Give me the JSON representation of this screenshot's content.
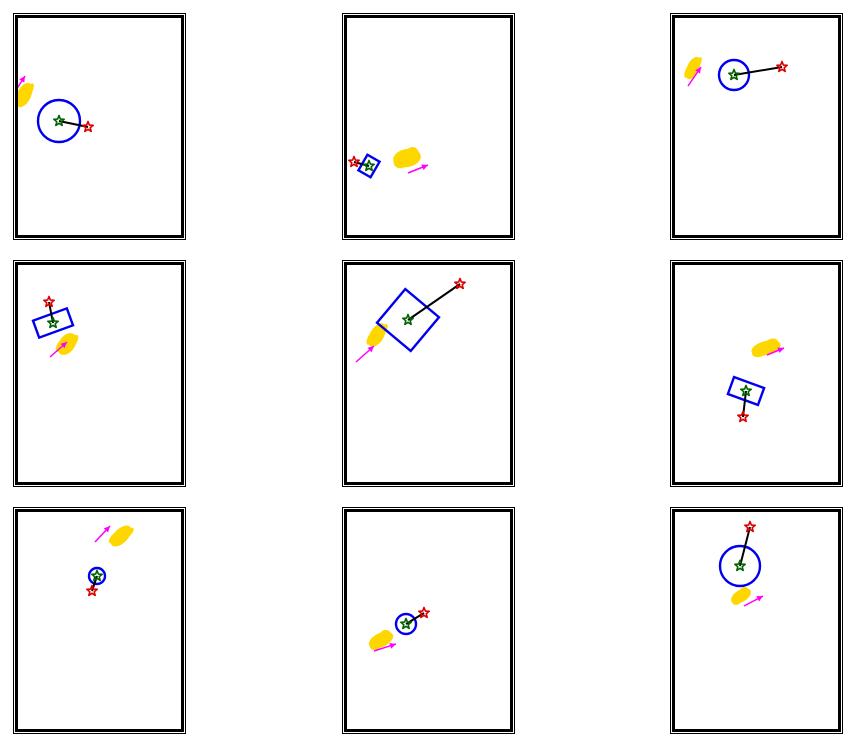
{
  "colors": {
    "frame": "#000000",
    "shape": "#0000ee",
    "start_star": "#006400",
    "goal_star": "#dd0000",
    "link": "#000000",
    "blob": "#ffd700",
    "arrow": "#ff00ff"
  },
  "icons": {
    "start": "green-star-icon",
    "goal": "red-star-icon",
    "direction": "magenta-arrow-icon"
  },
  "panels": [
    {
      "shape": "circle"
    },
    {
      "shape": "square"
    },
    {
      "shape": "circle"
    },
    {
      "shape": "rectangle"
    },
    {
      "shape": "square"
    },
    {
      "shape": "rectangle"
    },
    {
      "shape": "circle"
    },
    {
      "shape": "circle"
    },
    {
      "shape": "circle"
    }
  ]
}
